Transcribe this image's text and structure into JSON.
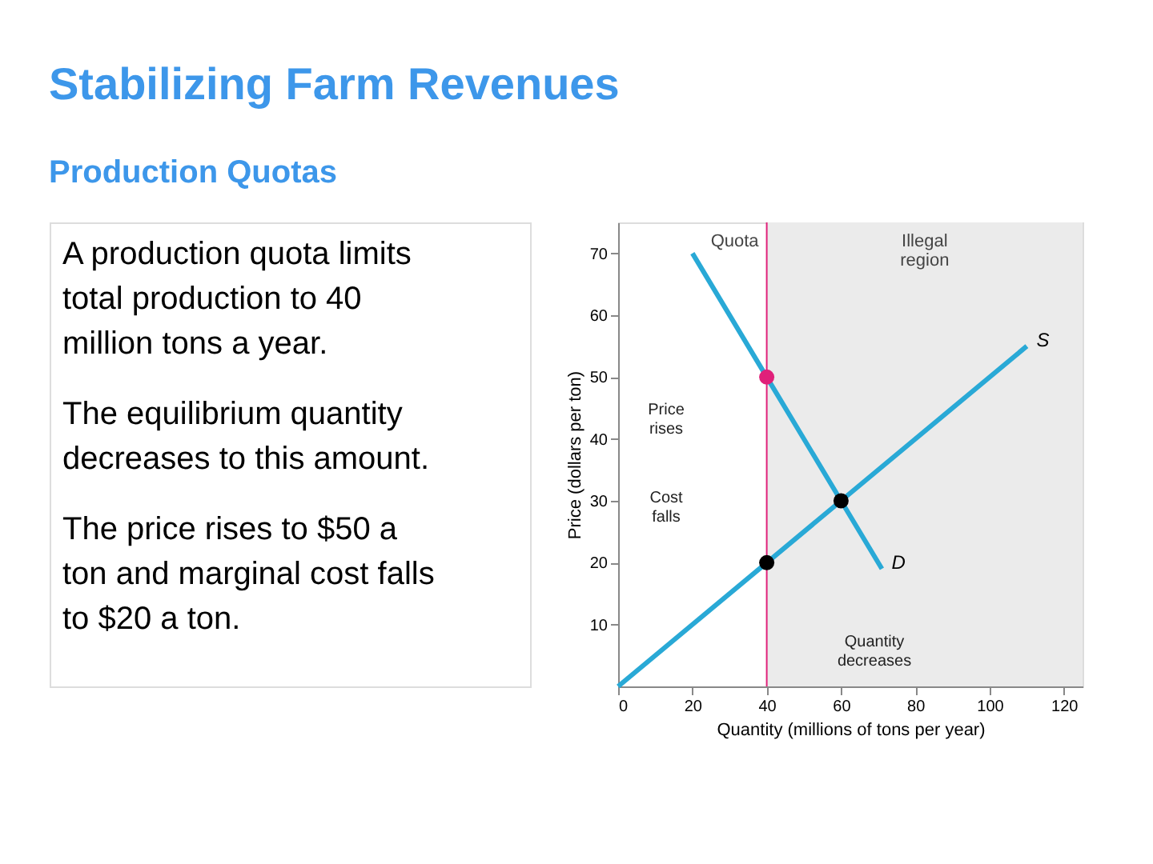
{
  "chart_data": {
    "type": "line",
    "title": "Stabilizing Farm Revenues",
    "subtitle": "Production Quotas",
    "xlabel": "Quantity (millions of tons per year)",
    "ylabel": "Price (dollars per ton)",
    "xlim": [
      0,
      125
    ],
    "ylim": [
      0,
      75
    ],
    "xticks": [
      0,
      20,
      40,
      60,
      80,
      100,
      120
    ],
    "yticks": [
      10,
      20,
      30,
      40,
      50,
      60,
      70
    ],
    "grid": false,
    "series": [
      {
        "name": "S",
        "color": "#29a9d6",
        "x": [
          0,
          40,
          60,
          110
        ],
        "values": [
          0,
          20,
          30,
          55
        ]
      },
      {
        "name": "D",
        "color": "#29a9d6",
        "x": [
          20,
          40,
          60,
          71
        ],
        "values": [
          70,
          50,
          30,
          19
        ]
      },
      {
        "type": "scatter",
        "x": [
          40,
          60,
          40
        ],
        "values": [
          50,
          30,
          20
        ],
        "colors": [
          "#e0207a",
          "#000000",
          "#000000"
        ]
      }
    ],
    "ref_lines": [
      {
        "axis": "x",
        "value": 40,
        "label": "Quota",
        "color": "#e0207a"
      }
    ],
    "bands": [
      {
        "axis": "x",
        "from": 40,
        "to": 125,
        "label": "Illegal region",
        "color": "#ebebeb"
      }
    ],
    "annotations": [
      "A production quota limits total production to 40 million tons a year.",
      "The equilibrium quantity decreases to this amount.",
      "The price rises to $50 a ton and marginal cost falls to $20 a ton.",
      "Price rises",
      "Cost falls",
      "Quantity decreases"
    ]
  }
}
